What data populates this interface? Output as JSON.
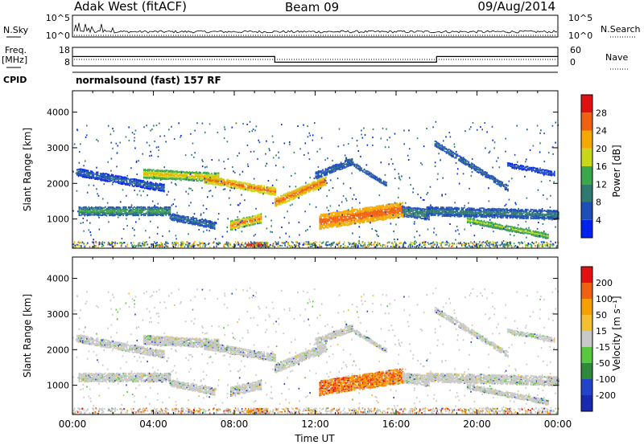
{
  "header": {
    "radar": "Adak West (fitACF)",
    "beam": "Beam 09",
    "date": "09/Aug/2014"
  },
  "labels": {
    "nsky": "N.Sky",
    "nsearch": "N.Search",
    "freq_top": "Freq.",
    "freq_unit": "[MHz]",
    "nave": "Nave",
    "cpid": "CPID",
    "program": "normalsound (fast) 157 RF"
  },
  "noise_panel": {
    "left_ticks": [
      "10^5",
      "10^0"
    ],
    "right_ticks": [
      "10^5",
      "10^0"
    ]
  },
  "freq_panel": {
    "left_ticks": [
      "18",
      "8"
    ],
    "right_ticks": [
      "60",
      "0"
    ]
  },
  "colors": {
    "power": [
      "#0022ee",
      "#1e4fb8",
      "#2f7a6e",
      "#3aa84a",
      "#c8d818",
      "#f4a800",
      "#f06010",
      "#e01010"
    ],
    "velocity": [
      "#e41010",
      "#f06010",
      "#f4a000",
      "#f4c030",
      "#c8c8c8",
      "#58c840",
      "#2e8a3a",
      "#2244cc",
      "#1a2ab0"
    ]
  },
  "chart_data": [
    {
      "type": "heatmap",
      "name": "power",
      "ylabel": "Slant Range [km]",
      "yticks": [
        1000,
        2000,
        3000,
        4000
      ],
      "ylim": [
        180,
        4600
      ],
      "xlim": [
        0,
        24
      ],
      "colorbar_label": "Power [dB]",
      "colorbar_ticks": [
        "4",
        "8",
        "12",
        "16",
        "20",
        "24",
        "28"
      ]
    },
    {
      "type": "heatmap",
      "name": "velocity",
      "ylabel": "Slant Range [km]",
      "yticks": [
        1000,
        2000,
        3000,
        4000
      ],
      "ylim": [
        180,
        4600
      ],
      "xlim": [
        0,
        24
      ],
      "xticks": [
        "00:00",
        "04:00",
        "08:00",
        "12:00",
        "16:00",
        "20:00",
        "00:00"
      ],
      "xlabel": "Time UT",
      "colorbar_label": "Velocity [m s⁻¹]",
      "colorbar_ticks": [
        "200",
        "100",
        "50",
        "15",
        "-15",
        "-50",
        "-100",
        "-200"
      ]
    }
  ],
  "frequency": [
    {
      "t0": 0,
      "t1": 10,
      "mhz": 14
    },
    {
      "t0": 10,
      "t1": 18,
      "mhz": 9.6
    },
    {
      "t0": 18,
      "t1": 24,
      "mhz": 14
    }
  ],
  "echo_bands": [
    {
      "t0": 0.2,
      "t1": 4.5,
      "r0": 2350,
      "r1": 1900,
      "w": 220,
      "pw": [
        4,
        12
      ],
      "vel": "gray"
    },
    {
      "t0": 3.5,
      "t1": 7.2,
      "r0": 2300,
      "r1": 2200,
      "w": 260,
      "pw": [
        14,
        26
      ],
      "vel": "gray"
    },
    {
      "t0": 6.5,
      "t1": 10.0,
      "r0": 2150,
      "r1": 1800,
      "w": 220,
      "pw": [
        18,
        30
      ],
      "vel": "gray"
    },
    {
      "t0": 10.0,
      "t1": 12.5,
      "r0": 1500,
      "r1": 2100,
      "w": 260,
      "pw": [
        20,
        30
      ],
      "vel": "gray"
    },
    {
      "t0": 12.0,
      "t1": 13.8,
      "r0": 2250,
      "r1": 2650,
      "w": 200,
      "pw": [
        6,
        12
      ],
      "vel": "gray"
    },
    {
      "t0": 0.3,
      "t1": 4.8,
      "r0": 1250,
      "r1": 1250,
      "w": 250,
      "pw": [
        8,
        18
      ],
      "vel": "gray"
    },
    {
      "t0": 4.8,
      "t1": 7.0,
      "r0": 1100,
      "r1": 850,
      "w": 200,
      "pw": [
        6,
        12
      ],
      "vel": "gray"
    },
    {
      "t0": 7.8,
      "t1": 9.3,
      "r0": 850,
      "r1": 1050,
      "w": 260,
      "pw": [
        16,
        30
      ],
      "vel": "gray"
    },
    {
      "t0": 12.2,
      "t1": 16.3,
      "r0": 950,
      "r1": 1300,
      "w": 420,
      "pw": [
        22,
        30
      ],
      "vel": "orange"
    },
    {
      "t0": 16.3,
      "t1": 17.6,
      "r0": 1250,
      "r1": 1150,
      "w": 300,
      "pw": [
        8,
        14
      ],
      "vel": "gray"
    },
    {
      "t0": 17.5,
      "t1": 24,
      "r0": 1250,
      "r1": 1150,
      "w": 260,
      "pw": [
        6,
        14
      ],
      "vel": "gray"
    },
    {
      "t0": 19.5,
      "t1": 23.5,
      "r0": 1000,
      "r1": 550,
      "w": 150,
      "pw": [
        12,
        22
      ],
      "vel": "gray"
    },
    {
      "t0": 17.9,
      "t1": 21.5,
      "r0": 3150,
      "r1": 1900,
      "w": 160,
      "pw": [
        6,
        12
      ],
      "vel": "gray"
    },
    {
      "t0": 13.5,
      "t1": 15.5,
      "r0": 2700,
      "r1": 2000,
      "w": 120,
      "pw": [
        6,
        12
      ],
      "vel": "gray"
    },
    {
      "t0": 21.5,
      "t1": 23.8,
      "r0": 2550,
      "r1": 2300,
      "w": 130,
      "pw": [
        4,
        10
      ],
      "vel": "gray"
    },
    {
      "t0": 8.6,
      "t1": 9.6,
      "r0": 300,
      "r1": 300,
      "w": 160,
      "pw": [
        28,
        32
      ],
      "vel": "orange"
    }
  ]
}
